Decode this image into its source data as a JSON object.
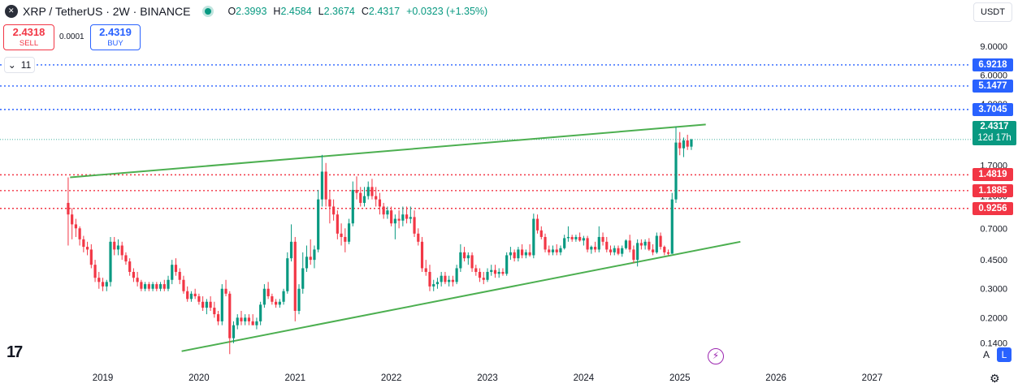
{
  "header": {
    "symbol": "XRP / TetherUS · 2W · BINANCE",
    "ohlc": [
      {
        "key": "O",
        "value": "2.3993"
      },
      {
        "key": "H",
        "value": "2.4584"
      },
      {
        "key": "L",
        "value": "2.3674"
      },
      {
        "key": "C",
        "value": "2.4317"
      }
    ],
    "change": "+0.0323 (+1.35%)"
  },
  "trade": {
    "sell_price": "2.4318",
    "sell_label": "SELL",
    "spread": "0.0001",
    "buy_price": "2.4319",
    "buy_label": "BUY"
  },
  "indicators_count": "11",
  "currency": "USDT",
  "current_price": {
    "price": "2.4317",
    "countdown": "12d 17h"
  },
  "level_labels": [
    {
      "value": 6.9218,
      "text": "6.9218",
      "color": "blue"
    },
    {
      "value": 5.1477,
      "text": "5.1477",
      "color": "blue"
    },
    {
      "value": 3.7045,
      "text": "3.7045",
      "color": "blue"
    },
    {
      "value": 1.4819,
      "text": "1.4819",
      "color": "red"
    },
    {
      "value": 1.1885,
      "text": "1.1885",
      "color": "red"
    },
    {
      "value": 0.9256,
      "text": "0.9256",
      "color": "red"
    }
  ],
  "buttons": {
    "auto": "A",
    "log": "L"
  },
  "colors": {
    "up": "#089981",
    "down": "#f23645",
    "trendline": "#4caf50",
    "blue_level": "#2962ff",
    "red_level": "#f23645"
  },
  "chart_data": {
    "type": "candlestick",
    "log_scale": true,
    "grid": false,
    "y_axis": {
      "ticks": [
        {
          "value": 9.0,
          "label": "9.0000"
        },
        {
          "value": 6.0,
          "label": "6.0000"
        },
        {
          "value": 4.0,
          "label": "4.0000"
        },
        {
          "value": 1.7,
          "label": "1.7000"
        },
        {
          "value": 1.1,
          "label": "1.1000"
        },
        {
          "value": 0.7,
          "label": "0.7000"
        },
        {
          "value": 0.45,
          "label": "0.4500"
        },
        {
          "value": 0.3,
          "label": "0.3000"
        },
        {
          "value": 0.2,
          "label": "0.2000"
        },
        {
          "value": 0.14,
          "label": "0.1400"
        }
      ]
    },
    "x_axis": {
      "ticks": [
        "2019",
        "2020",
        "2021",
        "2022",
        "2023",
        "2024",
        "2025",
        "2026",
        "2027"
      ]
    },
    "x_range": [
      2018.1,
      2027.9
    ],
    "y_range": [
      0.105,
      12.5
    ],
    "horizontal_levels": [
      {
        "value": 6.9218,
        "style": "dotted",
        "color": "blue"
      },
      {
        "value": 5.1477,
        "style": "dotted",
        "color": "blue"
      },
      {
        "value": 3.7045,
        "style": "dotted",
        "color": "blue"
      },
      {
        "value": 2.4317,
        "style": "dotted",
        "color": "green"
      },
      {
        "value": 1.4819,
        "style": "dotted",
        "color": "red"
      },
      {
        "value": 1.1885,
        "style": "dotted",
        "color": "red"
      },
      {
        "value": 0.9256,
        "style": "dotted",
        "color": "red"
      }
    ],
    "trendlines": [
      {
        "name": "upper",
        "points": [
          [
            2018.66,
            1.43
          ],
          [
            2025.27,
            3.0
          ]
        ]
      },
      {
        "name": "lower",
        "points": [
          [
            2019.82,
            0.125
          ],
          [
            2025.63,
            0.58
          ]
        ]
      }
    ],
    "candles": [
      [
        2018.64,
        1.0,
        1.43,
        0.55,
        0.85
      ],
      [
        2018.68,
        0.85,
        0.93,
        0.6,
        0.74
      ],
      [
        2018.72,
        0.74,
        0.8,
        0.62,
        0.7
      ],
      [
        2018.76,
        0.7,
        0.72,
        0.55,
        0.6
      ],
      [
        2018.8,
        0.6,
        0.63,
        0.5,
        0.54
      ],
      [
        2018.84,
        0.54,
        0.58,
        0.48,
        0.52
      ],
      [
        2018.88,
        0.52,
        0.56,
        0.4,
        0.42
      ],
      [
        2018.92,
        0.42,
        0.45,
        0.33,
        0.35
      ],
      [
        2018.96,
        0.35,
        0.38,
        0.3,
        0.33
      ],
      [
        2019.0,
        0.33,
        0.35,
        0.29,
        0.31
      ],
      [
        2019.04,
        0.31,
        0.34,
        0.29,
        0.33
      ],
      [
        2019.08,
        0.33,
        0.62,
        0.31,
        0.58
      ],
      [
        2019.12,
        0.58,
        0.62,
        0.48,
        0.52
      ],
      [
        2019.16,
        0.52,
        0.6,
        0.48,
        0.55
      ],
      [
        2019.2,
        0.55,
        0.58,
        0.45,
        0.48
      ],
      [
        2019.24,
        0.48,
        0.5,
        0.42,
        0.44
      ],
      [
        2019.28,
        0.44,
        0.46,
        0.36,
        0.38
      ],
      [
        2019.32,
        0.38,
        0.4,
        0.33,
        0.35
      ],
      [
        2019.36,
        0.35,
        0.38,
        0.31,
        0.33
      ],
      [
        2019.4,
        0.33,
        0.34,
        0.29,
        0.3
      ],
      [
        2019.44,
        0.3,
        0.33,
        0.29,
        0.32
      ],
      [
        2019.48,
        0.32,
        0.33,
        0.29,
        0.3
      ],
      [
        2019.52,
        0.3,
        0.33,
        0.29,
        0.32
      ],
      [
        2019.56,
        0.32,
        0.33,
        0.29,
        0.3
      ],
      [
        2019.6,
        0.3,
        0.33,
        0.29,
        0.32
      ],
      [
        2019.64,
        0.32,
        0.34,
        0.29,
        0.3
      ],
      [
        2019.68,
        0.3,
        0.36,
        0.29,
        0.34
      ],
      [
        2019.72,
        0.34,
        0.45,
        0.32,
        0.42
      ],
      [
        2019.76,
        0.42,
        0.46,
        0.36,
        0.38
      ],
      [
        2019.8,
        0.38,
        0.4,
        0.32,
        0.34
      ],
      [
        2019.84,
        0.34,
        0.36,
        0.28,
        0.29
      ],
      [
        2019.88,
        0.29,
        0.31,
        0.25,
        0.26
      ],
      [
        2019.92,
        0.26,
        0.29,
        0.25,
        0.28
      ],
      [
        2019.96,
        0.28,
        0.3,
        0.26,
        0.27
      ],
      [
        2020.0,
        0.27,
        0.28,
        0.24,
        0.25
      ],
      [
        2020.04,
        0.25,
        0.27,
        0.22,
        0.23
      ],
      [
        2020.08,
        0.23,
        0.26,
        0.21,
        0.25
      ],
      [
        2020.12,
        0.25,
        0.27,
        0.22,
        0.23
      ],
      [
        2020.16,
        0.23,
        0.25,
        0.2,
        0.21
      ],
      [
        2020.2,
        0.21,
        0.22,
        0.18,
        0.19
      ],
      [
        2020.24,
        0.19,
        0.32,
        0.18,
        0.3
      ],
      [
        2020.28,
        0.3,
        0.34,
        0.27,
        0.28
      ],
      [
        2020.32,
        0.28,
        0.29,
        0.12,
        0.15
      ],
      [
        2020.36,
        0.15,
        0.19,
        0.14,
        0.18
      ],
      [
        2020.4,
        0.18,
        0.21,
        0.17,
        0.2
      ],
      [
        2020.44,
        0.2,
        0.22,
        0.18,
        0.19
      ],
      [
        2020.48,
        0.19,
        0.21,
        0.18,
        0.2
      ],
      [
        2020.52,
        0.2,
        0.21,
        0.18,
        0.19
      ],
      [
        2020.56,
        0.19,
        0.21,
        0.18,
        0.18
      ],
      [
        2020.6,
        0.18,
        0.2,
        0.17,
        0.19
      ],
      [
        2020.64,
        0.19,
        0.25,
        0.18,
        0.24
      ],
      [
        2020.68,
        0.24,
        0.32,
        0.23,
        0.3
      ],
      [
        2020.72,
        0.3,
        0.33,
        0.26,
        0.27
      ],
      [
        2020.76,
        0.27,
        0.28,
        0.24,
        0.25
      ],
      [
        2020.8,
        0.25,
        0.26,
        0.23,
        0.24
      ],
      [
        2020.84,
        0.24,
        0.26,
        0.23,
        0.25
      ],
      [
        2020.88,
        0.25,
        0.3,
        0.24,
        0.29
      ],
      [
        2020.92,
        0.29,
        0.5,
        0.28,
        0.46
      ],
      [
        2020.96,
        0.46,
        0.74,
        0.44,
        0.58
      ],
      [
        2021.0,
        0.58,
        0.62,
        0.19,
        0.22
      ],
      [
        2021.04,
        0.22,
        0.32,
        0.21,
        0.3
      ],
      [
        2021.08,
        0.3,
        0.5,
        0.28,
        0.4
      ],
      [
        2021.12,
        0.4,
        0.55,
        0.38,
        0.47
      ],
      [
        2021.16,
        0.47,
        0.6,
        0.42,
        0.45
      ],
      [
        2021.2,
        0.45,
        0.55,
        0.4,
        0.52
      ],
      [
        2021.24,
        0.52,
        1.2,
        0.5,
        1.05
      ],
      [
        2021.28,
        1.05,
        1.96,
        0.95,
        1.55
      ],
      [
        2021.32,
        1.55,
        1.75,
        0.95,
        1.05
      ],
      [
        2021.36,
        1.05,
        1.2,
        0.75,
        0.95
      ],
      [
        2021.4,
        0.95,
        1.05,
        0.78,
        0.85
      ],
      [
        2021.44,
        0.85,
        0.9,
        0.6,
        0.65
      ],
      [
        2021.48,
        0.65,
        0.75,
        0.55,
        0.62
      ],
      [
        2021.52,
        0.62,
        0.7,
        0.5,
        0.58
      ],
      [
        2021.56,
        0.58,
        0.8,
        0.56,
        0.75
      ],
      [
        2021.6,
        0.75,
        1.35,
        0.72,
        1.2
      ],
      [
        2021.64,
        1.2,
        1.45,
        1.05,
        1.15
      ],
      [
        2021.68,
        1.15,
        1.25,
        0.95,
        1.0
      ],
      [
        2021.72,
        1.0,
        1.25,
        0.95,
        1.1
      ],
      [
        2021.76,
        1.1,
        1.35,
        1.05,
        1.25
      ],
      [
        2021.8,
        1.25,
        1.4,
        1.05,
        1.1
      ],
      [
        2021.84,
        1.1,
        1.25,
        0.95,
        1.05
      ],
      [
        2021.88,
        1.05,
        1.15,
        0.85,
        0.95
      ],
      [
        2021.92,
        0.95,
        1.0,
        0.8,
        0.85
      ],
      [
        2021.96,
        0.85,
        0.95,
        0.8,
        0.9
      ],
      [
        2022.0,
        0.9,
        0.95,
        0.72,
        0.75
      ],
      [
        2022.04,
        0.75,
        0.85,
        0.6,
        0.8
      ],
      [
        2022.08,
        0.8,
        0.9,
        0.7,
        0.78
      ],
      [
        2022.12,
        0.78,
        0.95,
        0.72,
        0.85
      ],
      [
        2022.16,
        0.85,
        0.95,
        0.75,
        0.8
      ],
      [
        2022.2,
        0.8,
        0.95,
        0.75,
        0.82
      ],
      [
        2022.24,
        0.82,
        0.9,
        0.62,
        0.65
      ],
      [
        2022.28,
        0.65,
        0.7,
        0.55,
        0.58
      ],
      [
        2022.32,
        0.58,
        0.62,
        0.38,
        0.4
      ],
      [
        2022.36,
        0.4,
        0.45,
        0.36,
        0.38
      ],
      [
        2022.4,
        0.38,
        0.42,
        0.29,
        0.31
      ],
      [
        2022.44,
        0.31,
        0.34,
        0.29,
        0.32
      ],
      [
        2022.48,
        0.32,
        0.35,
        0.3,
        0.33
      ],
      [
        2022.52,
        0.33,
        0.38,
        0.31,
        0.36
      ],
      [
        2022.56,
        0.36,
        0.38,
        0.32,
        0.33
      ],
      [
        2022.6,
        0.33,
        0.36,
        0.31,
        0.34
      ],
      [
        2022.64,
        0.34,
        0.36,
        0.31,
        0.33
      ],
      [
        2022.68,
        0.33,
        0.42,
        0.32,
        0.4
      ],
      [
        2022.72,
        0.4,
        0.56,
        0.38,
        0.5
      ],
      [
        2022.76,
        0.5,
        0.54,
        0.44,
        0.46
      ],
      [
        2022.8,
        0.46,
        0.5,
        0.42,
        0.48
      ],
      [
        2022.84,
        0.48,
        0.5,
        0.38,
        0.4
      ],
      [
        2022.88,
        0.4,
        0.42,
        0.36,
        0.38
      ],
      [
        2022.92,
        0.38,
        0.4,
        0.33,
        0.35
      ],
      [
        2022.96,
        0.35,
        0.38,
        0.32,
        0.34
      ],
      [
        2023.0,
        0.34,
        0.4,
        0.33,
        0.38
      ],
      [
        2023.04,
        0.38,
        0.42,
        0.36,
        0.39
      ],
      [
        2023.08,
        0.39,
        0.42,
        0.35,
        0.37
      ],
      [
        2023.12,
        0.37,
        0.4,
        0.35,
        0.38
      ],
      [
        2023.16,
        0.38,
        0.4,
        0.36,
        0.37
      ],
      [
        2023.2,
        0.37,
        0.5,
        0.36,
        0.48
      ],
      [
        2023.24,
        0.48,
        0.54,
        0.45,
        0.5
      ],
      [
        2023.28,
        0.5,
        0.52,
        0.44,
        0.46
      ],
      [
        2023.32,
        0.46,
        0.54,
        0.44,
        0.52
      ],
      [
        2023.36,
        0.52,
        0.56,
        0.46,
        0.48
      ],
      [
        2023.4,
        0.48,
        0.52,
        0.46,
        0.5
      ],
      [
        2023.44,
        0.5,
        0.56,
        0.47,
        0.48
      ],
      [
        2023.48,
        0.48,
        0.86,
        0.46,
        0.8
      ],
      [
        2023.52,
        0.8,
        0.85,
        0.65,
        0.68
      ],
      [
        2023.56,
        0.68,
        0.72,
        0.6,
        0.62
      ],
      [
        2023.6,
        0.62,
        0.65,
        0.5,
        0.52
      ],
      [
        2023.64,
        0.52,
        0.55,
        0.48,
        0.5
      ],
      [
        2023.68,
        0.5,
        0.55,
        0.48,
        0.52
      ],
      [
        2023.72,
        0.52,
        0.56,
        0.48,
        0.5
      ],
      [
        2023.76,
        0.5,
        0.55,
        0.48,
        0.53
      ],
      [
        2023.8,
        0.53,
        0.64,
        0.52,
        0.61
      ],
      [
        2023.84,
        0.61,
        0.72,
        0.58,
        0.62
      ],
      [
        2023.88,
        0.62,
        0.64,
        0.58,
        0.6
      ],
      [
        2023.92,
        0.6,
        0.64,
        0.58,
        0.62
      ],
      [
        2023.96,
        0.62,
        0.66,
        0.58,
        0.59
      ],
      [
        2024.0,
        0.59,
        0.63,
        0.55,
        0.61
      ],
      [
        2024.04,
        0.61,
        0.63,
        0.5,
        0.52
      ],
      [
        2024.08,
        0.52,
        0.55,
        0.49,
        0.54
      ],
      [
        2024.12,
        0.54,
        0.58,
        0.5,
        0.52
      ],
      [
        2024.16,
        0.52,
        0.72,
        0.5,
        0.62
      ],
      [
        2024.2,
        0.62,
        0.66,
        0.55,
        0.58
      ],
      [
        2024.24,
        0.58,
        0.62,
        0.5,
        0.52
      ],
      [
        2024.28,
        0.52,
        0.55,
        0.48,
        0.5
      ],
      [
        2024.32,
        0.5,
        0.55,
        0.48,
        0.53
      ],
      [
        2024.36,
        0.53,
        0.55,
        0.48,
        0.49
      ],
      [
        2024.4,
        0.49,
        0.55,
        0.47,
        0.53
      ],
      [
        2024.44,
        0.53,
        0.6,
        0.52,
        0.59
      ],
      [
        2024.48,
        0.59,
        0.64,
        0.5,
        0.52
      ],
      [
        2024.52,
        0.52,
        0.55,
        0.43,
        0.45
      ],
      [
        2024.56,
        0.45,
        0.6,
        0.41,
        0.57
      ],
      [
        2024.6,
        0.57,
        0.6,
        0.52,
        0.55
      ],
      [
        2024.64,
        0.55,
        0.6,
        0.52,
        0.58
      ],
      [
        2024.68,
        0.58,
        0.61,
        0.51,
        0.52
      ],
      [
        2024.72,
        0.52,
        0.56,
        0.48,
        0.5
      ],
      [
        2024.76,
        0.5,
        0.66,
        0.49,
        0.63
      ],
      [
        2024.8,
        0.63,
        0.66,
        0.52,
        0.54
      ],
      [
        2024.84,
        0.54,
        0.55,
        0.48,
        0.5
      ],
      [
        2024.88,
        0.5,
        0.52,
        0.48,
        0.49
      ],
      [
        2024.92,
        0.49,
        1.15,
        0.49,
        1.05
      ],
      [
        2024.96,
        1.05,
        2.91,
        1.0,
        2.33
      ],
      [
        2025.0,
        2.33,
        2.7,
        1.95,
        2.15
      ],
      [
        2025.04,
        2.15,
        2.5,
        1.9,
        2.4
      ],
      [
        2025.08,
        2.4,
        2.6,
        2.1,
        2.2
      ],
      [
        2025.12,
        2.2,
        2.46,
        2.1,
        2.43
      ]
    ]
  }
}
